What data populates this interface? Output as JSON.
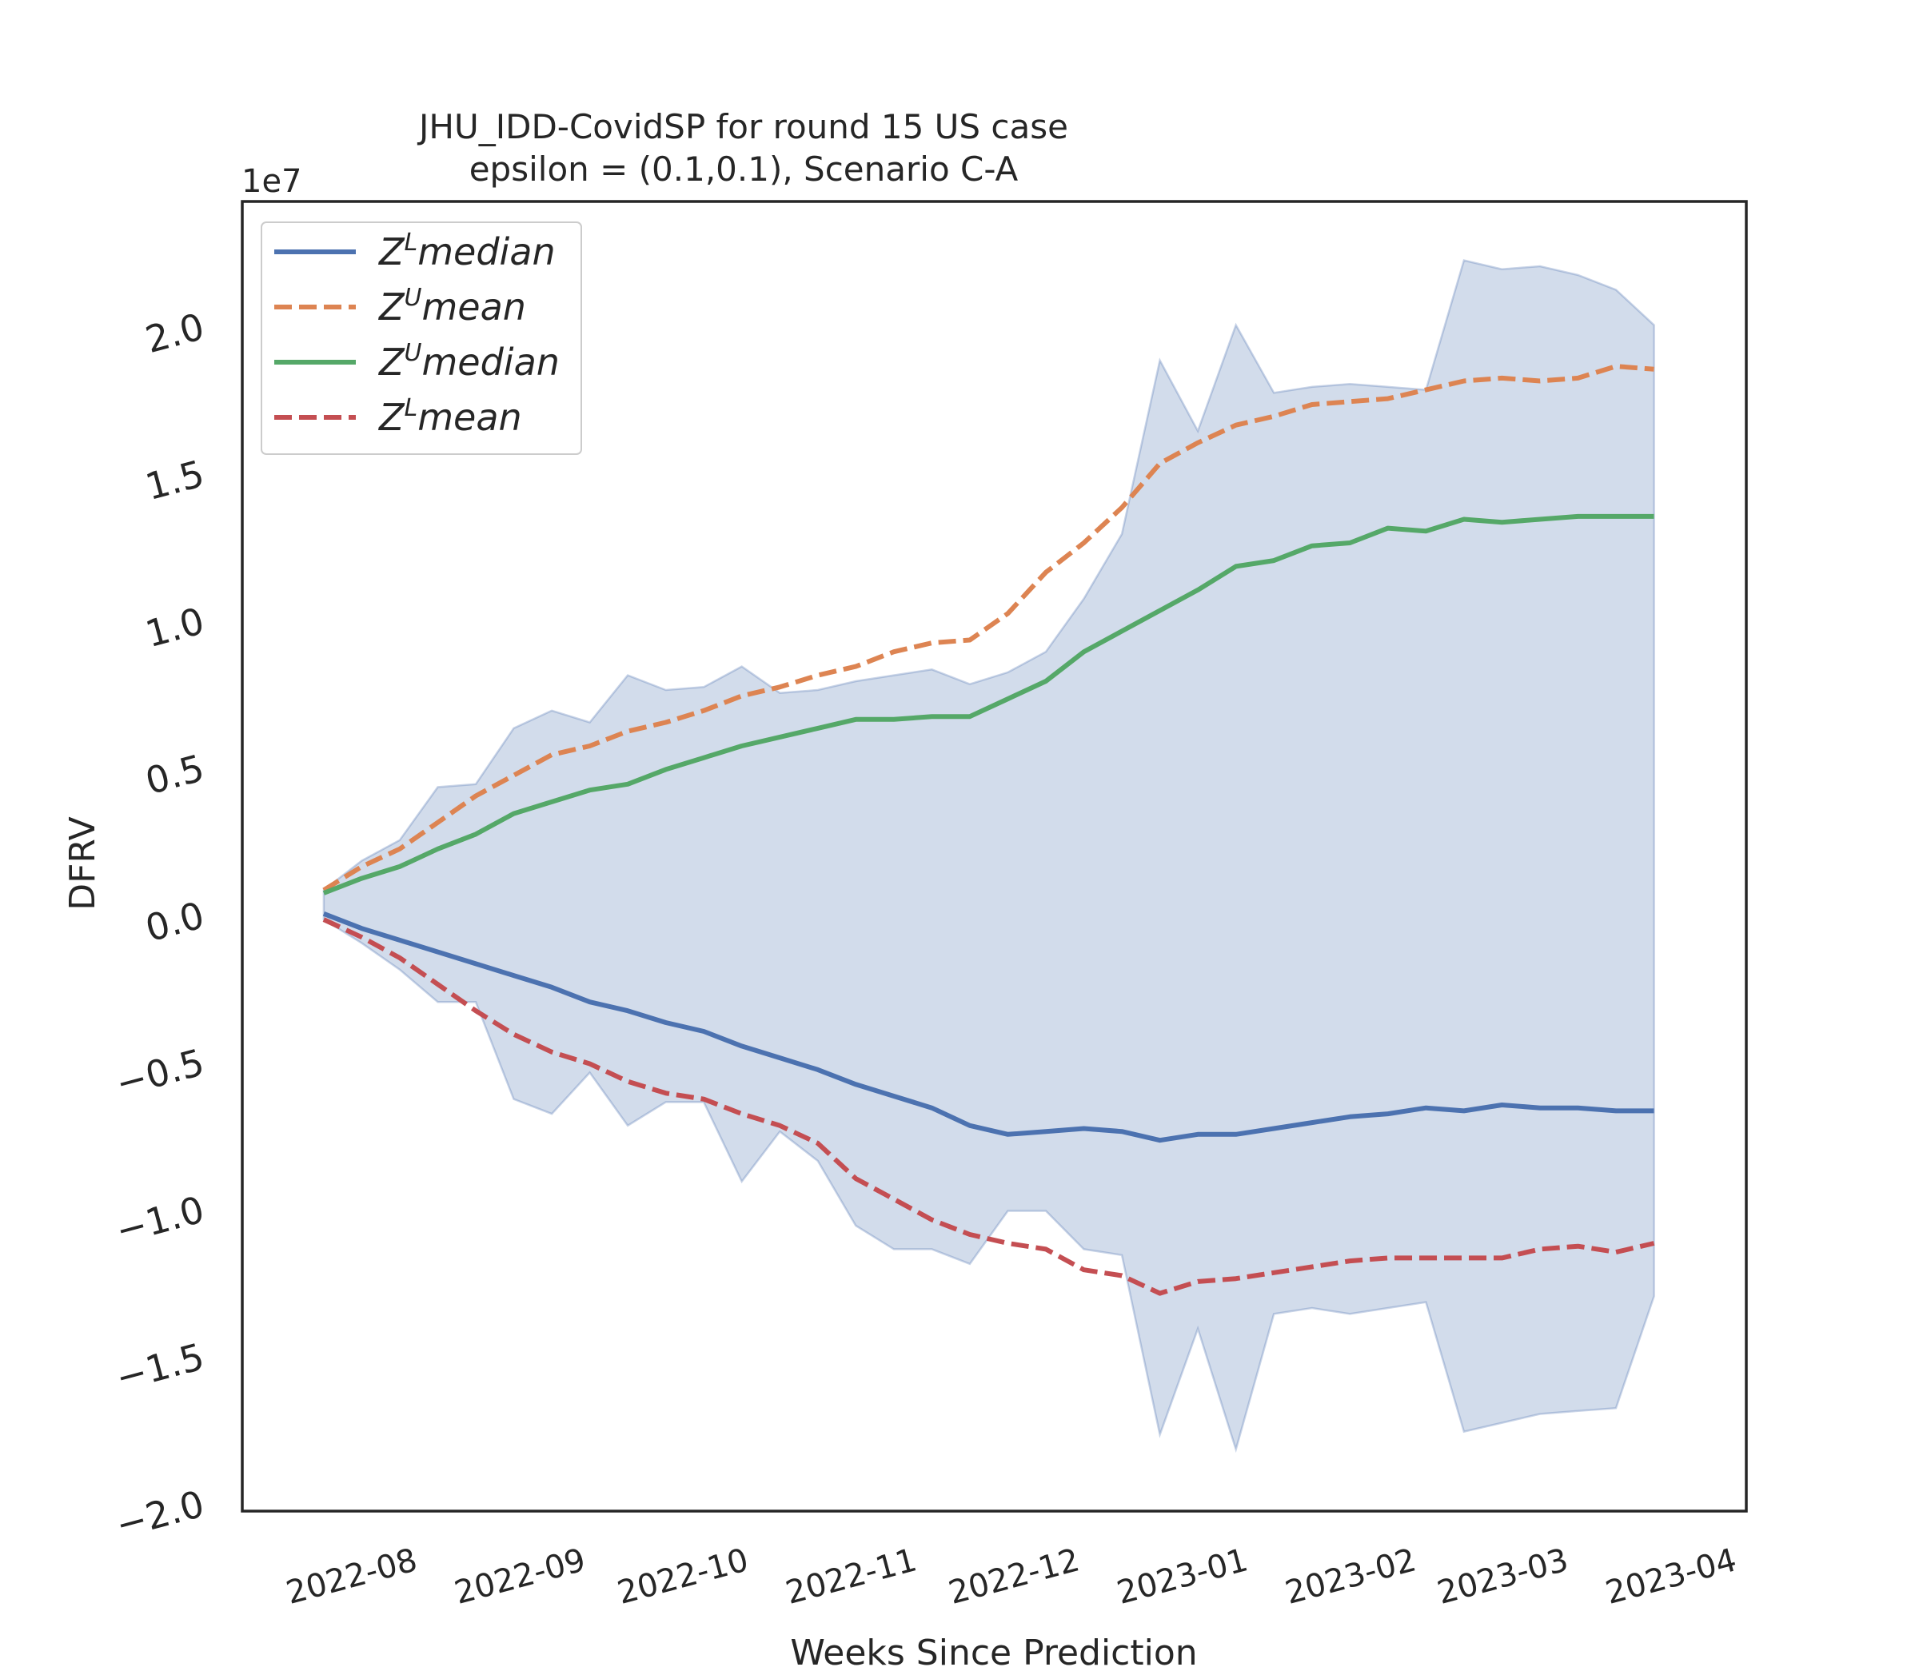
{
  "chart_data": {
    "type": "line",
    "title_line1": "JHU_IDD-CovidSP for round 15 US  case",
    "title_line2": "epsilon = (0.1,0.1), Scenario C-A",
    "xlabel": "Weeks Since Prediction",
    "ylabel": "DFRV",
    "y_offset_label": "1e7",
    "x_ticks": [
      "2022-08",
      "2022-09",
      "2022-10",
      "2022-11",
      "2022-12",
      "2023-01",
      "2023-02",
      "2023-03",
      "2023-04"
    ],
    "y_ticks": [
      "2.0",
      "1.5",
      "1.0",
      "0.5",
      "0.0",
      "−0.5",
      "−1.0",
      "−1.5",
      "−2.0"
    ],
    "y_tick_values": [
      2.0,
      1.5,
      1.0,
      0.5,
      0.0,
      -0.5,
      -1.0,
      -1.5,
      -2.0
    ],
    "ylim": [
      -2.03,
      2.42
    ],
    "xlim": [
      "2022-07-08",
      "2023-04-11"
    ],
    "x_dates": [
      "2022-07-23",
      "2022-07-30",
      "2022-08-06",
      "2022-08-13",
      "2022-08-20",
      "2022-08-27",
      "2022-09-03",
      "2022-09-10",
      "2022-09-17",
      "2022-09-24",
      "2022-10-01",
      "2022-10-08",
      "2022-10-15",
      "2022-10-22",
      "2022-10-29",
      "2022-11-05",
      "2022-11-12",
      "2022-11-19",
      "2022-11-26",
      "2022-12-03",
      "2022-12-10",
      "2022-12-17",
      "2022-12-24",
      "2022-12-31",
      "2023-01-07",
      "2023-01-14",
      "2023-01-21",
      "2023-01-28",
      "2023-02-04",
      "2023-02-11",
      "2023-02-18",
      "2023-02-25",
      "2023-03-04",
      "2023-03-11",
      "2023-03-18",
      "2023-03-25"
    ],
    "band": {
      "upper": [
        0.08,
        0.18,
        0.25,
        0.43,
        0.44,
        0.63,
        0.69,
        0.65,
        0.81,
        0.76,
        0.77,
        0.84,
        0.75,
        0.76,
        0.79,
        0.81,
        0.83,
        0.78,
        0.82,
        0.89,
        1.07,
        1.29,
        1.88,
        1.64,
        2.0,
        1.77,
        1.79,
        1.8,
        1.79,
        1.78,
        2.22,
        2.19,
        2.2,
        2.17,
        2.12,
        2.0
      ],
      "lower": [
        -0.02,
        -0.1,
        -0.19,
        -0.3,
        -0.3,
        -0.63,
        -0.68,
        -0.54,
        -0.72,
        -0.64,
        -0.64,
        -0.91,
        -0.74,
        -0.84,
        -1.06,
        -1.14,
        -1.14,
        -1.19,
        -1.01,
        -1.01,
        -1.14,
        -1.16,
        -1.77,
        -1.41,
        -1.82,
        -1.36,
        -1.34,
        -1.36,
        -1.34,
        -1.32,
        -1.76,
        -1.73,
        -1.7,
        -1.69,
        -1.68,
        -1.3
      ]
    },
    "series": [
      {
        "name": "Z^L median",
        "label_base": "Z",
        "label_sup": "L",
        "label_rest": "median",
        "color": "#4c72b0",
        "dash": "solid",
        "values": [
          0.0,
          -0.05,
          -0.09,
          -0.13,
          -0.17,
          -0.21,
          -0.25,
          -0.3,
          -0.33,
          -0.37,
          -0.4,
          -0.45,
          -0.49,
          -0.53,
          -0.58,
          -0.62,
          -0.66,
          -0.72,
          -0.75,
          -0.74,
          -0.73,
          -0.74,
          -0.77,
          -0.75,
          -0.75,
          -0.73,
          -0.71,
          -0.69,
          -0.68,
          -0.66,
          -0.67,
          -0.65,
          -0.66,
          -0.66,
          -0.67,
          -0.67
        ]
      },
      {
        "name": "Z^U mean",
        "label_base": "Z",
        "label_sup": "U",
        "label_rest": "mean",
        "color": "#dd8452",
        "dash": "dashed",
        "values": [
          0.08,
          0.16,
          0.22,
          0.31,
          0.4,
          0.47,
          0.54,
          0.57,
          0.62,
          0.65,
          0.69,
          0.74,
          0.77,
          0.81,
          0.84,
          0.89,
          0.92,
          0.93,
          1.02,
          1.16,
          1.26,
          1.38,
          1.53,
          1.6,
          1.66,
          1.69,
          1.73,
          1.74,
          1.75,
          1.78,
          1.81,
          1.82,
          1.81,
          1.82,
          1.86,
          1.85
        ]
      },
      {
        "name": "Z^U median",
        "label_base": "Z",
        "label_sup": "U",
        "label_rest": "median",
        "color": "#55a868",
        "dash": "solid",
        "values": [
          0.07,
          0.12,
          0.16,
          0.22,
          0.27,
          0.34,
          0.38,
          0.42,
          0.44,
          0.49,
          0.53,
          0.57,
          0.6,
          0.63,
          0.66,
          0.66,
          0.67,
          0.67,
          0.73,
          0.79,
          0.89,
          0.96,
          1.03,
          1.1,
          1.18,
          1.2,
          1.25,
          1.26,
          1.31,
          1.3,
          1.34,
          1.33,
          1.34,
          1.35,
          1.35,
          1.35
        ]
      },
      {
        "name": "Z^L mean",
        "label_base": "Z",
        "label_sup": "L",
        "label_rest": "mean",
        "color": "#c44e52",
        "dash": "dashed",
        "values": [
          -0.02,
          -0.08,
          -0.15,
          -0.24,
          -0.33,
          -0.41,
          -0.47,
          -0.51,
          -0.57,
          -0.61,
          -0.63,
          -0.68,
          -0.72,
          -0.78,
          -0.9,
          -0.97,
          -1.04,
          -1.09,
          -1.12,
          -1.14,
          -1.21,
          -1.23,
          -1.29,
          -1.25,
          -1.24,
          -1.22,
          -1.2,
          -1.18,
          -1.17,
          -1.17,
          -1.17,
          -1.17,
          -1.14,
          -1.13,
          -1.15,
          -1.12
        ]
      }
    ],
    "band_color": "#4c72b0",
    "legend_position": "upper-left",
    "grid": false
  }
}
